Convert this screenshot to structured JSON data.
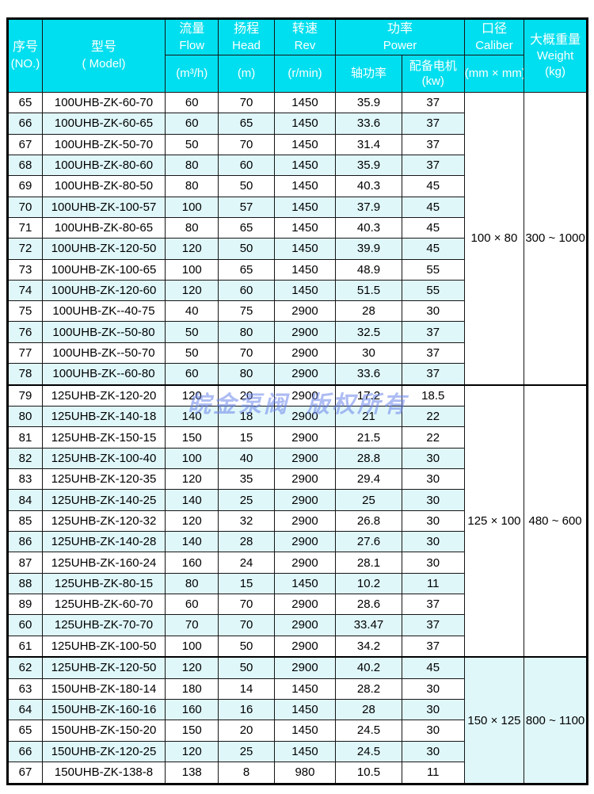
{
  "watermark": "皖金泵阀  版权所有",
  "colors": {
    "header_bg": "#00dfef",
    "header_text": "#ffffff",
    "row_bg": "#ffffff",
    "row_alt_bg": "#e0f7fa",
    "border": "#000000",
    "watermark_blue": "#6a85e9"
  },
  "header": {
    "no": {
      "zh": "序号",
      "en": "(NO.)"
    },
    "model": {
      "zh": "型号",
      "en": "( Model)"
    },
    "flow": {
      "zh": "流量",
      "en": "Flow",
      "unit": "(m³/h)"
    },
    "head": {
      "zh": "扬程",
      "en": "Head",
      "unit": "(m)"
    },
    "rev": {
      "zh": "转速",
      "en": "Rev",
      "unit": "(r/min)"
    },
    "power": {
      "zh": "功率",
      "en": "Power",
      "shaft": "轴功率",
      "motor_zh": "配备电机",
      "motor_unit": "(kw)"
    },
    "caliber": {
      "zh": "口径",
      "en": "Caliber",
      "unit": "(mm × mm)"
    },
    "weight": {
      "zh": "大概重量",
      "en": "Weight",
      "unit": "(kg)"
    }
  },
  "columns_order": [
    "no",
    "model",
    "flow_m3h",
    "head_m",
    "rev_rmin",
    "shaft_power_kw",
    "motor_kw"
  ],
  "sections": [
    {
      "caliber": "100 × 80",
      "weight": "300 ~ 1000",
      "rows": [
        [
          "65",
          "100UHB-ZK-60-70",
          "60",
          "70",
          "1450",
          "35.9",
          "37"
        ],
        [
          "66",
          "100UHB-ZK-60-65",
          "60",
          "65",
          "1450",
          "33.6",
          "37"
        ],
        [
          "67",
          "100UHB-ZK-50-70",
          "50",
          "70",
          "1450",
          "31.4",
          "37"
        ],
        [
          "68",
          "100UHB-ZK-80-60",
          "80",
          "60",
          "1450",
          "35.9",
          "37"
        ],
        [
          "69",
          "100UHB-ZK-80-50",
          "80",
          "50",
          "1450",
          "40.3",
          "45"
        ],
        [
          "70",
          "100UHB-ZK-100-57",
          "100",
          "57",
          "1450",
          "37.9",
          "45"
        ],
        [
          "71",
          "100UHB-ZK-80-65",
          "80",
          "65",
          "1450",
          "40.3",
          "45"
        ],
        [
          "72",
          "100UHB-ZK-120-50",
          "120",
          "50",
          "1450",
          "39.9",
          "45"
        ],
        [
          "73",
          "100UHB-ZK-100-65",
          "100",
          "65",
          "1450",
          "48.9",
          "55"
        ],
        [
          "74",
          "100UHB-ZK-120-60",
          "120",
          "60",
          "1450",
          "51.5",
          "55"
        ],
        [
          "75",
          "100UHB-ZK--40-75",
          "40",
          "75",
          "2900",
          "28",
          "30"
        ],
        [
          "76",
          "100UHB-ZK--50-80",
          "50",
          "80",
          "2900",
          "32.5",
          "37"
        ],
        [
          "77",
          "100UHB-ZK--50-70",
          "50",
          "70",
          "2900",
          "30",
          "37"
        ],
        [
          "78",
          "100UHB-ZK--60-80",
          "60",
          "80",
          "2900",
          "33.6",
          "37"
        ]
      ]
    },
    {
      "caliber": "125 × 100",
      "weight": "480 ~ 600",
      "rows": [
        [
          "79",
          "125UHB-ZK-120-20",
          "120",
          "20",
          "2900",
          "17.2",
          "18.5"
        ],
        [
          "80",
          "125UHB-ZK-140-18",
          "140",
          "18",
          "2900",
          "21",
          "22"
        ],
        [
          "81",
          "125UHB-ZK-150-15",
          "150",
          "15",
          "2900",
          "21.5",
          "22"
        ],
        [
          "82",
          "125UHB-ZK-100-40",
          "100",
          "40",
          "2900",
          "28.8",
          "30"
        ],
        [
          "83",
          "125UHB-ZK-120-35",
          "120",
          "35",
          "2900",
          "29.4",
          "30"
        ],
        [
          "84",
          "125UHB-ZK-140-25",
          "140",
          "25",
          "2900",
          "25",
          "30"
        ],
        [
          "85",
          "125UHB-ZK-120-32",
          "120",
          "32",
          "2900",
          "26.8",
          "30"
        ],
        [
          "86",
          "125UHB-ZK-140-28",
          "140",
          "28",
          "2900",
          "27.6",
          "30"
        ],
        [
          "87",
          "125UHB-ZK-160-24",
          "160",
          "24",
          "2900",
          "28.1",
          "30"
        ],
        [
          "88",
          "125UHB-ZK-80-15",
          "80",
          "15",
          "1450",
          "10.2",
          "11"
        ],
        [
          "89",
          "125UHB-ZK-60-70",
          "60",
          "70",
          "2900",
          "28.6",
          "37"
        ],
        [
          "60",
          "125UHB-ZK-70-70",
          "70",
          "70",
          "2900",
          "33.47",
          "37"
        ],
        [
          "61",
          "125UHB-ZK-100-50",
          "100",
          "50",
          "2900",
          "34.2",
          "37"
        ]
      ]
    },
    {
      "caliber": "150 × 125",
      "weight": "800 ~ 1100",
      "rows": [
        [
          "62",
          "125UHB-ZK-120-50",
          "120",
          "50",
          "2900",
          "40.2",
          "45"
        ],
        [
          "63",
          "150UHB-ZK-180-14",
          "180",
          "14",
          "1450",
          "28.2",
          "30"
        ],
        [
          "64",
          "150UHB-ZK-160-16",
          "160",
          "16",
          "1450",
          "28",
          "30"
        ],
        [
          "65",
          "150UHB-ZK-150-20",
          "150",
          "20",
          "1450",
          "24.5",
          "30"
        ],
        [
          "66",
          "150UHB-ZK-120-25",
          "120",
          "25",
          "1450",
          "24.5",
          "30"
        ],
        [
          "67",
          "150UHB-ZK-138-8",
          "138",
          "8",
          "980",
          "10.5",
          "11"
        ]
      ]
    }
  ]
}
